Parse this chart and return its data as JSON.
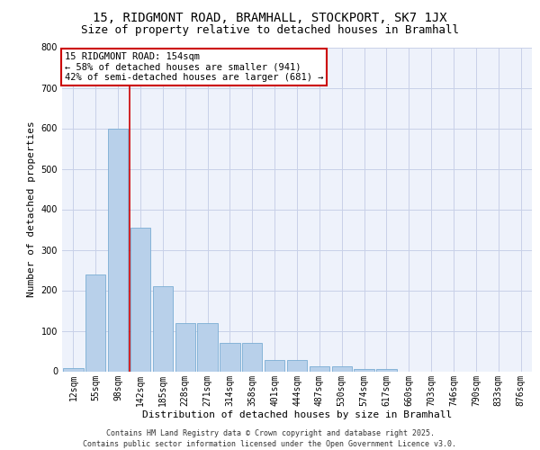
{
  "title": "15, RIDGMONT ROAD, BRAMHALL, STOCKPORT, SK7 1JX",
  "subtitle": "Size of property relative to detached houses in Bramhall",
  "xlabel": "Distribution of detached houses by size in Bramhall",
  "ylabel": "Number of detached properties",
  "bar_color": "#b8d0ea",
  "bar_edge_color": "#7aadd4",
  "background_color": "#eef2fb",
  "grid_color": "#c8d0e8",
  "categories": [
    "12sqm",
    "55sqm",
    "98sqm",
    "142sqm",
    "185sqm",
    "228sqm",
    "271sqm",
    "314sqm",
    "358sqm",
    "401sqm",
    "444sqm",
    "487sqm",
    "530sqm",
    "574sqm",
    "617sqm",
    "660sqm",
    "703sqm",
    "746sqm",
    "790sqm",
    "833sqm",
    "876sqm"
  ],
  "values": [
    8,
    240,
    600,
    355,
    210,
    118,
    118,
    70,
    70,
    27,
    27,
    12,
    12,
    5,
    5,
    0,
    0,
    0,
    0,
    0,
    0
  ],
  "vline_x": 2.5,
  "vline_color": "#cc0000",
  "annotation_text": "15 RIDGMONT ROAD: 154sqm\n← 58% of detached houses are smaller (941)\n42% of semi-detached houses are larger (681) →",
  "annotation_box_color": "#ffffff",
  "annotation_box_edge": "#cc0000",
  "ylim": [
    0,
    800
  ],
  "yticks": [
    0,
    100,
    200,
    300,
    400,
    500,
    600,
    700,
    800
  ],
  "footer": "Contains HM Land Registry data © Crown copyright and database right 2025.\nContains public sector information licensed under the Open Government Licence v3.0.",
  "title_fontsize": 10,
  "subtitle_fontsize": 9,
  "axis_label_fontsize": 8,
  "tick_fontsize": 7,
  "annotation_fontsize": 7.5,
  "footer_fontsize": 6
}
